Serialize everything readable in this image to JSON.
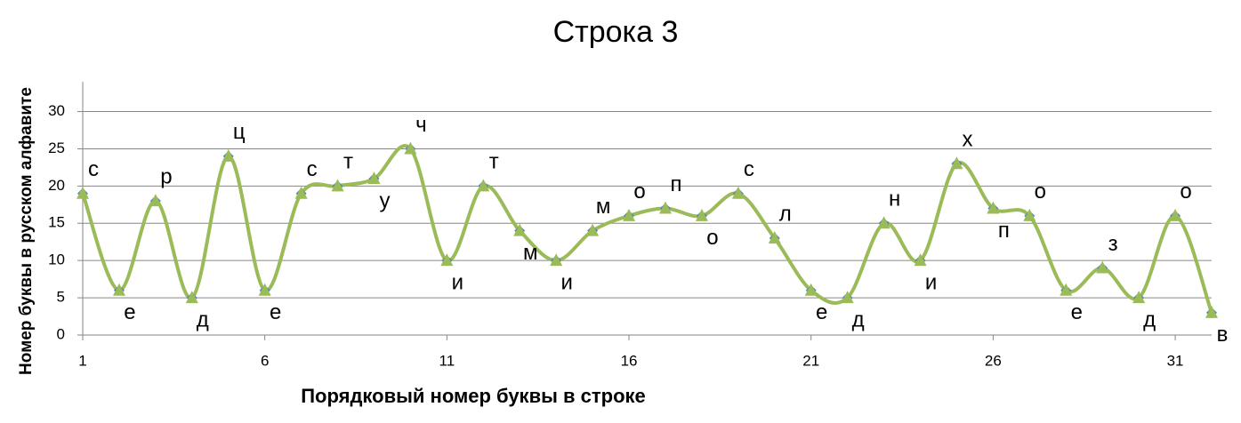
{
  "chart_data": {
    "type": "line",
    "title": "Строка 3",
    "x_label": "Порядковый номер буквы в строке",
    "y_label": "Номер буквы в русском алфавите",
    "x": [
      1,
      2,
      3,
      4,
      5,
      6,
      7,
      8,
      9,
      10,
      11,
      12,
      13,
      14,
      15,
      16,
      17,
      18,
      19,
      20,
      21,
      22,
      23,
      24,
      25,
      26,
      27,
      28,
      29,
      30,
      31,
      32
    ],
    "series": [
      {
        "color": "#9bbb59",
        "marker_color": "#4f81bd",
        "values": [
          19,
          6,
          18,
          5,
          24,
          6,
          19,
          20,
          21,
          25,
          10,
          20,
          14,
          10,
          14,
          16,
          17,
          16,
          19,
          13,
          6,
          5,
          15,
          10,
          23,
          17,
          16,
          6,
          9,
          5,
          16,
          3
        ],
        "point_labels": [
          "с",
          "е",
          "р",
          "д",
          "ц",
          "е",
          "с",
          "т",
          "у",
          "ч",
          "и",
          "т",
          "м",
          "и",
          "м",
          "о",
          "п",
          "о",
          "с",
          "л",
          "е",
          "д",
          "н",
          "и",
          "х",
          "п",
          "о",
          "е",
          "з",
          "д",
          "о",
          "в"
        ]
      }
    ],
    "xlim": [
      1,
      32
    ],
    "xticks": [
      1,
      6,
      11,
      16,
      21,
      26,
      31
    ],
    "ylim": [
      0,
      34
    ],
    "yticks": [
      0,
      5,
      10,
      15,
      20,
      25,
      30
    ],
    "grid": true
  }
}
